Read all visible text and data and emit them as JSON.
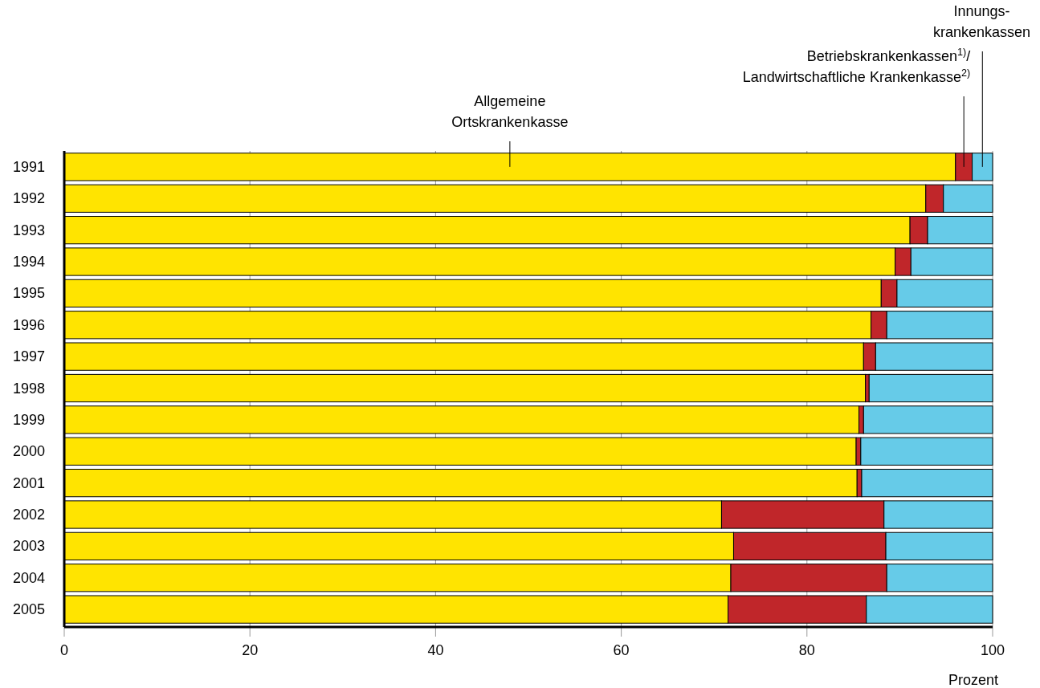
{
  "chart_data": {
    "type": "bar",
    "orientation": "horizontal",
    "stacked": true,
    "xlabel": "Prozent",
    "categories": [
      "1991",
      "1992",
      "1993",
      "1994",
      "1995",
      "1996",
      "1997",
      "1998",
      "1999",
      "2000",
      "2001",
      "2002",
      "2003",
      "2004",
      "2005"
    ],
    "series": [
      {
        "name": "Allgemeine\nOrtskrankenkasse",
        "color": "#ffe400",
        "values": [
          96.0,
          92.8,
          91.1,
          89.5,
          88.0,
          86.9,
          86.1,
          86.3,
          85.6,
          85.3,
          85.4,
          70.8,
          72.1,
          71.8,
          71.5
        ]
      },
      {
        "name": "Betriebskrankenkassen$^{1)}$/\nLandwirtschaftliche Krankenkasse$^{2)}$",
        "color": "#c0262a",
        "values": [
          1.8,
          1.9,
          1.9,
          1.7,
          1.7,
          1.7,
          1.3,
          0.4,
          0.5,
          0.5,
          0.5,
          17.5,
          16.4,
          16.8,
          14.9
        ]
      },
      {
        "name": "Innungs-\nkrankenkassen",
        "color": "#66cbe8",
        "values": [
          2.2,
          5.3,
          7.0,
          8.8,
          10.3,
          11.4,
          12.6,
          13.3,
          13.9,
          14.2,
          14.1,
          11.7,
          11.5,
          11.4,
          13.6
        ]
      }
    ],
    "xlim": [
      0,
      100
    ],
    "xticks": [
      0,
      20,
      40,
      60,
      80,
      100
    ],
    "grid": "x"
  }
}
